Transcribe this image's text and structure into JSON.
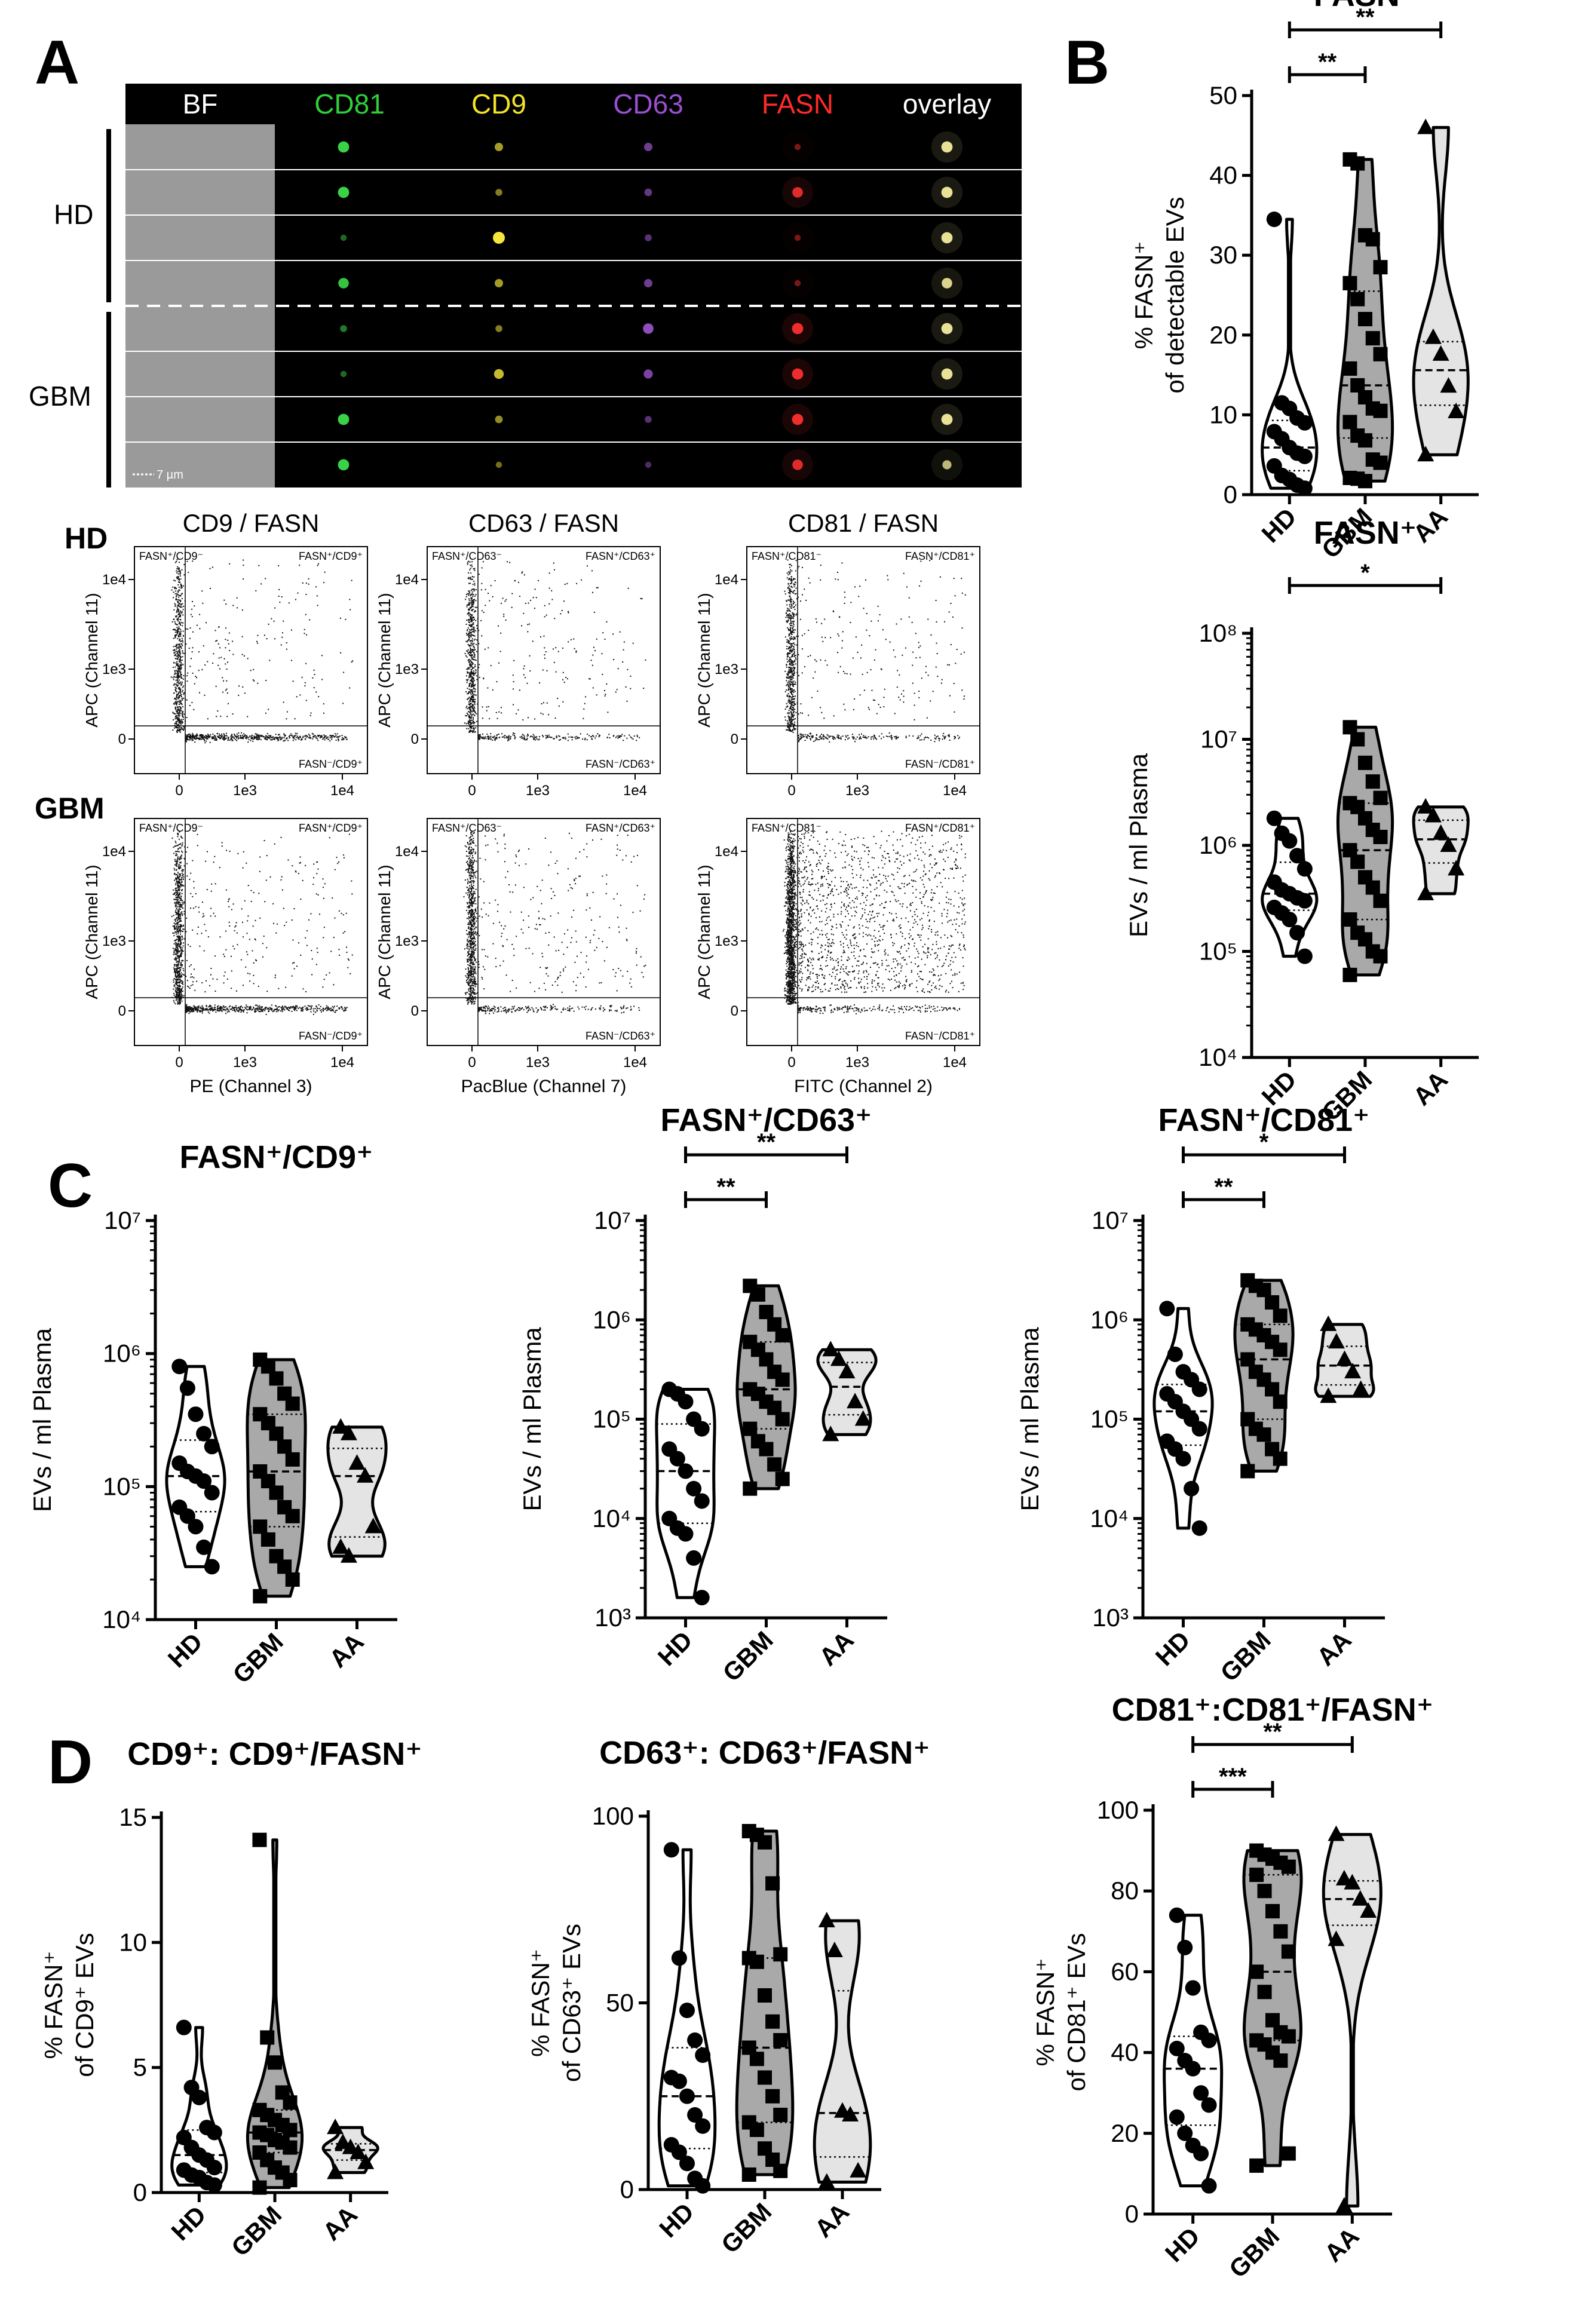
{
  "panels": {
    "A": "A",
    "B": "B",
    "C": "C",
    "D": "D"
  },
  "panelA": {
    "channels": [
      {
        "label": "BF",
        "color": "#ffffff"
      },
      {
        "label": "CD81",
        "color": "#2fcf3a"
      },
      {
        "label": "CD9",
        "color": "#f2e22a"
      },
      {
        "label": "CD63",
        "color": "#9a4fd0"
      },
      {
        "label": "FASN",
        "color": "#ff2a2a"
      },
      {
        "label": "overlay",
        "color": "#ffffff"
      }
    ],
    "groups": {
      "hd": "HD",
      "gbm": "GBM"
    },
    "scalebar": "7 µm",
    "flow": {
      "rows": [
        "HD",
        "GBM"
      ],
      "titles": [
        "CD9 / FASN",
        "CD63 / FASN",
        "CD81 / FASN"
      ],
      "ylabel": "APC (Channel 11)",
      "xlabels": [
        "PE (Channel 3)",
        "PacBlue (Channel 7)",
        "FITC (Channel 2)"
      ],
      "xticks": [
        "0",
        "1e3",
        "1e4"
      ],
      "yticks": [
        "0",
        "1e3",
        "1e4"
      ],
      "quadrants": [
        {
          "tl": "FASN⁺/CD9⁻",
          "tr": "FASN⁺/CD9⁺",
          "br": "FASN⁻/CD9⁺"
        },
        {
          "tl": "FASN⁺/CD63⁻",
          "tr": "FASN⁺/CD63⁺",
          "br": "FASN⁻/CD63⁺"
        },
        {
          "tl": "FASN⁺/CD81⁻",
          "tr": "FASN⁺/CD81⁺",
          "br": "FASN⁻/CD81⁺"
        }
      ]
    }
  },
  "chart_data": [
    {
      "id": "B1",
      "type": "violin",
      "title": "FASN⁺",
      "ylabel": [
        "% FASN⁺",
        "of detectable EVs"
      ],
      "categories": [
        "HD",
        "GBM",
        "AA"
      ],
      "scale": "linear",
      "ylim": [
        0,
        50
      ],
      "yticks": [
        0,
        10,
        20,
        30,
        40,
        50
      ],
      "series": [
        {
          "name": "HD",
          "marker": "circle",
          "values": [
            34.5,
            11.5,
            10.8,
            9.6,
            9.0,
            7.9,
            7.0,
            5.9,
            5.2,
            4.8,
            3.6,
            2.4,
            1.9,
            1.2,
            0.8
          ]
        },
        {
          "name": "GBM",
          "marker": "square",
          "values": [
            42,
            41.5,
            32.5,
            32,
            28.5,
            26.5,
            24.5,
            22,
            19.6,
            17.6,
            15.8,
            13.7,
            12.2,
            10.8,
            10.5,
            9.1,
            7.4,
            6.8,
            4.4,
            4.0,
            2.1,
            2.0,
            1.7
          ]
        },
        {
          "name": "AA",
          "marker": "triangle",
          "values": [
            46,
            19.7,
            17.6,
            13.6,
            10.4,
            5.0
          ]
        }
      ],
      "significance": [
        {
          "from": "HD",
          "to": "GBM",
          "label": "**"
        },
        {
          "from": "HD",
          "to": "AA",
          "label": "**"
        }
      ]
    },
    {
      "id": "B2",
      "type": "violin",
      "title": "FASN⁺",
      "ylabel": [
        "EVs / ml Plasma"
      ],
      "categories": [
        "HD",
        "GBM",
        "AA"
      ],
      "scale": "log",
      "ylim": [
        10000,
        100000000
      ],
      "yticks": [
        "10⁴",
        "10⁵",
        "10⁶",
        "10⁷",
        "10⁸"
      ],
      "series": [
        {
          "name": "HD",
          "marker": "circle",
          "values": [
            1800000,
            1300000,
            1100000,
            800000,
            600000,
            450000,
            380000,
            350000,
            320000,
            300000,
            260000,
            230000,
            200000,
            150000,
            90000
          ]
        },
        {
          "name": "GBM",
          "marker": "square",
          "values": [
            13000000,
            10000000,
            6000000,
            4000000,
            2800000,
            2500000,
            2300000,
            1800000,
            1400000,
            1200000,
            900000,
            700000,
            500000,
            400000,
            300000,
            200000,
            150000,
            130000,
            100000,
            90000,
            60000
          ]
        },
        {
          "name": "AA",
          "marker": "triangle",
          "values": [
            2300000,
            1900000,
            1300000,
            1000000,
            600000,
            350000
          ]
        }
      ],
      "significance": [
        {
          "from": "HD",
          "to": "AA",
          "label": "*"
        }
      ]
    },
    {
      "id": "C1",
      "type": "violin",
      "title": "FASN⁺/CD9⁺",
      "ylabel": [
        "EVs / ml Plasma"
      ],
      "categories": [
        "HD",
        "GBM",
        "AA"
      ],
      "scale": "log",
      "ylim": [
        10000,
        10000000
      ],
      "yticks": [
        "10⁴",
        "10⁵",
        "10⁶",
        "10⁷"
      ],
      "series": [
        {
          "name": "HD",
          "marker": "circle",
          "values": [
            800000,
            550000,
            350000,
            250000,
            200000,
            150000,
            130000,
            120000,
            110000,
            90000,
            70000,
            60000,
            50000,
            35000,
            25000
          ]
        },
        {
          "name": "GBM",
          "marker": "square",
          "values": [
            900000,
            800000,
            650000,
            500000,
            420000,
            350000,
            300000,
            250000,
            200000,
            160000,
            130000,
            110000,
            90000,
            70000,
            60000,
            50000,
            40000,
            30000,
            25000,
            20000,
            15000
          ]
        },
        {
          "name": "AA",
          "marker": "triangle",
          "values": [
            280000,
            250000,
            150000,
            120000,
            50000,
            35000,
            30000
          ]
        }
      ],
      "significance": []
    },
    {
      "id": "C2",
      "type": "violin",
      "title": "FASN⁺/CD63⁺",
      "ylabel": [
        "EVs / ml Plasma"
      ],
      "categories": [
        "HD",
        "GBM",
        "AA"
      ],
      "scale": "log",
      "ylim": [
        1000,
        10000000
      ],
      "yticks": [
        "10³",
        "10⁴",
        "10⁵",
        "10⁶",
        "10⁷"
      ],
      "series": [
        {
          "name": "HD",
          "marker": "circle",
          "values": [
            200000,
            180000,
            150000,
            100000,
            80000,
            50000,
            40000,
            30000,
            20000,
            15000,
            10000,
            8000,
            7000,
            4000,
            1600
          ]
        },
        {
          "name": "GBM",
          "marker": "square",
          "values": [
            2200000,
            1800000,
            1200000,
            900000,
            700000,
            600000,
            500000,
            400000,
            300000,
            250000,
            200000,
            180000,
            150000,
            130000,
            100000,
            80000,
            60000,
            50000,
            35000,
            25000,
            20000
          ]
        },
        {
          "name": "AA",
          "marker": "triangle",
          "values": [
            500000,
            400000,
            300000,
            150000,
            100000,
            70000
          ]
        }
      ],
      "significance": [
        {
          "from": "HD",
          "to": "GBM",
          "label": "**"
        },
        {
          "from": "HD",
          "to": "AA",
          "label": "**"
        }
      ]
    },
    {
      "id": "C3",
      "type": "violin",
      "title": "FASN⁺/CD81⁺",
      "ylabel": [
        "EVs / ml Plasma"
      ],
      "categories": [
        "HD",
        "GBM",
        "AA"
      ],
      "scale": "log",
      "ylim": [
        1000,
        10000000
      ],
      "yticks": [
        "10³",
        "10⁴",
        "10⁵",
        "10⁶",
        "10⁷"
      ],
      "series": [
        {
          "name": "HD",
          "marker": "circle",
          "values": [
            1300000,
            450000,
            300000,
            250000,
            200000,
            180000,
            150000,
            120000,
            100000,
            80000,
            60000,
            50000,
            40000,
            20000,
            8000
          ]
        },
        {
          "name": "GBM",
          "marker": "square",
          "values": [
            2500000,
            2200000,
            2000000,
            1500000,
            1100000,
            900000,
            800000,
            700000,
            600000,
            500000,
            400000,
            300000,
            250000,
            200000,
            150000,
            100000,
            80000,
            70000,
            50000,
            40000,
            30000
          ]
        },
        {
          "name": "AA",
          "marker": "triangle",
          "values": [
            900000,
            600000,
            400000,
            300000,
            200000,
            170000
          ]
        }
      ],
      "significance": [
        {
          "from": "HD",
          "to": "GBM",
          "label": "**"
        },
        {
          "from": "HD",
          "to": "AA",
          "label": "*"
        }
      ]
    },
    {
      "id": "D1",
      "type": "violin",
      "title": "CD9⁺: CD9⁺/FASN⁺",
      "ylabel": [
        "% FASN⁺",
        "of CD9⁺ EVs"
      ],
      "categories": [
        "HD",
        "GBM",
        "AA"
      ],
      "scale": "linear",
      "ylim": [
        0,
        15
      ],
      "yticks": [
        0,
        5,
        10,
        15
      ],
      "series": [
        {
          "name": "HD",
          "marker": "circle",
          "values": [
            6.6,
            4.2,
            3.8,
            2.6,
            2.4,
            2.2,
            1.8,
            1.5,
            1.3,
            1.0,
            0.9,
            0.7,
            0.6,
            0.4,
            0.3
          ]
        },
        {
          "name": "GBM",
          "marker": "square",
          "values": [
            14.1,
            6.2,
            5.2,
            4.0,
            3.6,
            3.3,
            3.1,
            2.9,
            2.7,
            2.5,
            2.4,
            2.3,
            2.1,
            2.0,
            1.8,
            1.6,
            1.3,
            1.0,
            0.8,
            0.5,
            0.2
          ]
        },
        {
          "name": "AA",
          "marker": "triangle",
          "values": [
            2.6,
            2.0,
            1.8,
            1.6,
            1.2,
            0.8
          ]
        }
      ],
      "significance": []
    },
    {
      "id": "D2",
      "type": "violin",
      "title": "CD63⁺: CD63⁺/FASN⁺",
      "ylabel": [
        "% FASN⁺",
        "of CD63⁺ EVs"
      ],
      "categories": [
        "HD",
        "GBM",
        "AA"
      ],
      "scale": "linear",
      "ylim": [
        0,
        100
      ],
      "yticks": [
        0,
        50,
        100
      ],
      "series": [
        {
          "name": "HD",
          "marker": "circle",
          "values": [
            91,
            62,
            48,
            40,
            36,
            30,
            29,
            25,
            20,
            17,
            12,
            10,
            7,
            3,
            1
          ]
        },
        {
          "name": "GBM",
          "marker": "square",
          "values": [
            96,
            95,
            93,
            82,
            63,
            62,
            61,
            52,
            45,
            40,
            38,
            35,
            30,
            25,
            20,
            18,
            16,
            11,
            8,
            5,
            4
          ]
        },
        {
          "name": "AA",
          "marker": "triangle",
          "values": [
            72,
            64,
            21,
            20,
            5,
            2
          ]
        }
      ],
      "significance": []
    },
    {
      "id": "D3",
      "type": "violin",
      "title": "CD81⁺:CD81⁺/FASN⁺",
      "ylabel": [
        "% FASN⁺",
        "of CD81⁺ EVs"
      ],
      "categories": [
        "HD",
        "GBM",
        "AA"
      ],
      "scale": "linear",
      "ylim": [
        0,
        100
      ],
      "yticks": [
        0,
        20,
        40,
        60,
        80,
        100
      ],
      "series": [
        {
          "name": "HD",
          "marker": "circle",
          "values": [
            74,
            66,
            56,
            45,
            43,
            41,
            38,
            36,
            30,
            27,
            24,
            20,
            17,
            15,
            7
          ]
        },
        {
          "name": "GBM",
          "marker": "square",
          "values": [
            90,
            89,
            88,
            87,
            86,
            84,
            80,
            75,
            70,
            65,
            60,
            55,
            48,
            45,
            44,
            43,
            42,
            40,
            38,
            15,
            12
          ]
        },
        {
          "name": "AA",
          "marker": "triangle",
          "values": [
            94,
            83,
            82,
            78,
            75,
            68,
            2
          ]
        }
      ],
      "significance": [
        {
          "from": "HD",
          "to": "GBM",
          "label": "***"
        },
        {
          "from": "HD",
          "to": "AA",
          "label": "**"
        }
      ]
    }
  ]
}
